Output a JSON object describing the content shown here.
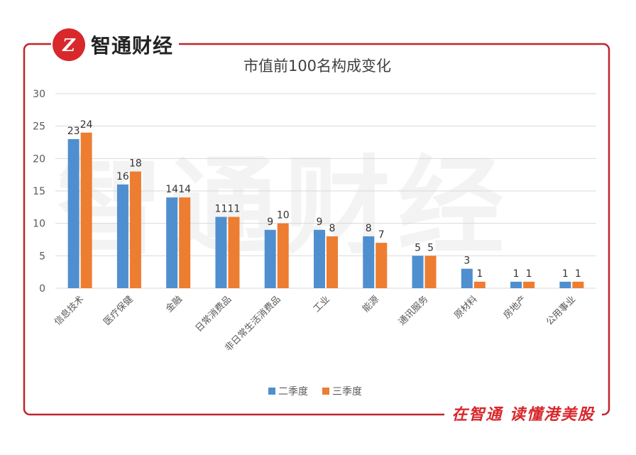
{
  "brand": {
    "logo_text": "Z",
    "name": "智通财经"
  },
  "slogan": "在智通 读懂港美股",
  "watermark": "智通财经",
  "colors": {
    "frame": "#c0242b",
    "series1": "#4f8fcf",
    "series2": "#ed7d31",
    "grid": "#d9d9d9",
    "text": "#595959"
  },
  "chart_data": {
    "type": "bar",
    "title": "市值前100名构成变化",
    "categories": [
      "信息技术",
      "医疗保健",
      "金融",
      "日常消费品",
      "非日常生活消费品",
      "工业",
      "能源",
      "通讯服务",
      "原材料",
      "房地产",
      "公用事业"
    ],
    "series": [
      {
        "name": "二季度",
        "values": [
          23,
          16,
          14,
          11,
          9,
          9,
          8,
          5,
          3,
          1,
          1
        ]
      },
      {
        "name": "三季度",
        "values": [
          24,
          18,
          14,
          11,
          10,
          8,
          7,
          5,
          1,
          1,
          1
        ]
      }
    ],
    "ylim": [
      0,
      30
    ],
    "yticks": [
      0,
      5,
      10,
      15,
      20,
      25,
      30
    ],
    "grid": true,
    "legend_position": "bottom"
  }
}
